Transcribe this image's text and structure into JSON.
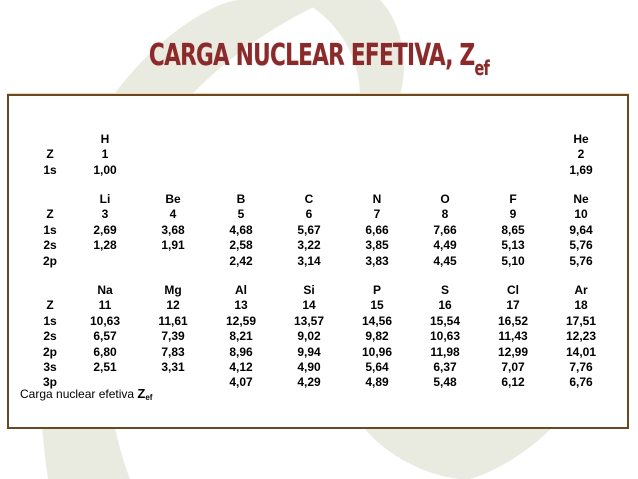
{
  "title": {
    "main": "CARGA NUCLEAR EFETIVA, Z",
    "subscript": "ef"
  },
  "colors": {
    "title": "#8b2a2a",
    "border": "#6a4820",
    "background_shape": "#eaebe0"
  },
  "row_labels": {
    "Z": "Z",
    "1s": "1s",
    "2s": "2s",
    "2p": "2p",
    "3s": "3s",
    "3p": "3p"
  },
  "periods": [
    {
      "rows": [
        "Z",
        "1s"
      ],
      "elements": [
        {
          "symbol": "H",
          "Z": "1",
          "1s": "1,00",
          "col": 1
        },
        {
          "symbol": "He",
          "Z": "2",
          "1s": "1,69",
          "col": 8
        }
      ]
    },
    {
      "rows": [
        "Z",
        "1s",
        "2s",
        "2p"
      ],
      "elements": [
        {
          "symbol": "Li",
          "Z": "3",
          "1s": "2,69",
          "2s": "1,28",
          "col": 1
        },
        {
          "symbol": "Be",
          "Z": "4",
          "1s": "3,68",
          "2s": "1,91",
          "col": 2
        },
        {
          "symbol": "B",
          "Z": "5",
          "1s": "4,68",
          "2s": "2,58",
          "2p": "2,42",
          "col": 3
        },
        {
          "symbol": "C",
          "Z": "6",
          "1s": "5,67",
          "2s": "3,22",
          "2p": "3,14",
          "col": 4
        },
        {
          "symbol": "N",
          "Z": "7",
          "1s": "6,66",
          "2s": "3,85",
          "2p": "3,83",
          "col": 5
        },
        {
          "symbol": "O",
          "Z": "8",
          "1s": "7,66",
          "2s": "4,49",
          "2p": "4,45",
          "col": 6
        },
        {
          "symbol": "F",
          "Z": "9",
          "1s": "8,65",
          "2s": "5,13",
          "2p": "5,10",
          "col": 7
        },
        {
          "symbol": "Ne",
          "Z": "10",
          "1s": "9,64",
          "2s": "5,76",
          "2p": "5,76",
          "col": 8
        }
      ]
    },
    {
      "rows": [
        "Z",
        "1s",
        "2s",
        "2p",
        "3s",
        "3p"
      ],
      "elements": [
        {
          "symbol": "Na",
          "Z": "11",
          "1s": "10,63",
          "2s": "6,57",
          "2p": "6,80",
          "3s": "2,51",
          "col": 1
        },
        {
          "symbol": "Mg",
          "Z": "12",
          "1s": "11,61",
          "2s": "7,39",
          "2p": "7,83",
          "3s": "3,31",
          "col": 2
        },
        {
          "symbol": "Al",
          "Z": "13",
          "1s": "12,59",
          "2s": "8,21",
          "2p": "8,96",
          "3s": "4,12",
          "3p": "4,07",
          "col": 3
        },
        {
          "symbol": "Si",
          "Z": "14",
          "1s": "13,57",
          "2s": "9,02",
          "2p": "9,94",
          "3s": "4,90",
          "3p": "4,29",
          "col": 4
        },
        {
          "symbol": "P",
          "Z": "15",
          "1s": "14,56",
          "2s": "9,82",
          "2p": "10,96",
          "3s": "5,64",
          "3p": "4,89",
          "col": 5
        },
        {
          "symbol": "S",
          "Z": "16",
          "1s": "15,54",
          "2s": "10,63",
          "2p": "11,98",
          "3s": "6,37",
          "3p": "5,48",
          "col": 6
        },
        {
          "symbol": "Cl",
          "Z": "17",
          "1s": "16,52",
          "2s": "11,43",
          "2p": "12,99",
          "3s": "7,07",
          "3p": "6,12",
          "col": 7
        },
        {
          "symbol": "Ar",
          "Z": "18",
          "1s": "17,51",
          "2s": "12,23",
          "2p": "14,01",
          "3s": "7,76",
          "3p": "6,76",
          "col": 8
        }
      ]
    }
  ],
  "footnote": {
    "text": "Carga nuclear efetiva ",
    "symbol": "Z",
    "subscript": "ef"
  }
}
